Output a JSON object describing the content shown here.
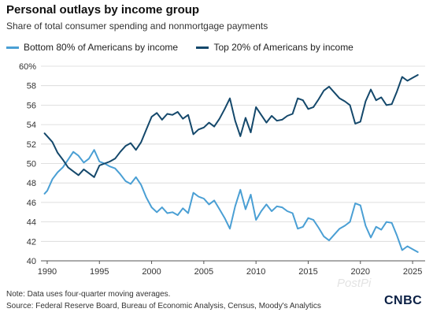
{
  "title": "Personal outlays by income group",
  "subtitle": "Share of total consumer spending and nonmortgage payments",
  "note": "Note: Data uses four-quarter moving averages.",
  "source": "Source: Federal Reserve Board, Bureau of Economic Analysis, Census, Moody's Analytics",
  "watermark": "PostPi",
  "logo": "CNBC",
  "colors": {
    "bottom80": "#4a9fd4",
    "top20": "#14486b",
    "grid": "#d6d6d6"
  },
  "chart_data": {
    "type": "line",
    "title": "Personal outlays by income group",
    "subtitle": "Share of total consumer spending and nonmortgage payments",
    "xlabel": "",
    "ylabel": "",
    "xlim": [
      1989.4,
      2026.2
    ],
    "ylim": [
      40,
      60
    ],
    "x_ticks": [
      1990,
      1995,
      2000,
      2005,
      2010,
      2015,
      2020,
      2025
    ],
    "x_tick_labels": [
      "1990",
      "1995",
      "2000",
      "2005",
      "2010",
      "2015",
      "2020",
      "2025"
    ],
    "y_ticks": [
      40,
      42,
      44,
      46,
      48,
      50,
      52,
      54,
      56,
      58,
      60
    ],
    "y_tick_labels": [
      "40",
      "42",
      "44",
      "46",
      "48",
      "50",
      "52",
      "54",
      "56",
      "58",
      "60%"
    ],
    "grid": "horizontal",
    "legend": "top-left",
    "series": [
      {
        "name": "Bottom 80% of Americans by income",
        "color": "#4a9fd4",
        "x": [
          1989.75,
          1990.0,
          1990.5,
          1991.0,
          1991.5,
          1992.0,
          1992.5,
          1993.0,
          1993.5,
          1994.0,
          1994.5,
          1995.0,
          1995.5,
          1996.0,
          1996.5,
          1997.0,
          1997.5,
          1998.0,
          1998.5,
          1999.0,
          1999.5,
          2000.0,
          2000.5,
          2001.0,
          2001.5,
          2002.0,
          2002.5,
          2003.0,
          2003.5,
          2004.0,
          2004.5,
          2005.0,
          2005.5,
          2006.0,
          2006.5,
          2007.0,
          2007.5,
          2008.0,
          2008.5,
          2009.0,
          2009.5,
          2010.0,
          2010.5,
          2011.0,
          2011.5,
          2012.0,
          2012.5,
          2013.0,
          2013.5,
          2014.0,
          2014.5,
          2015.0,
          2015.5,
          2016.0,
          2016.5,
          2017.0,
          2017.5,
          2018.0,
          2018.5,
          2019.0,
          2019.5,
          2020.0,
          2020.5,
          2021.0,
          2021.5,
          2022.0,
          2022.5,
          2023.0,
          2023.5,
          2024.0,
          2024.5,
          2025.0,
          2025.5
        ],
        "values": [
          46.9,
          47.2,
          48.4,
          49.1,
          49.6,
          50.4,
          51.2,
          50.8,
          50.1,
          50.5,
          51.4,
          50.2,
          50.0,
          49.7,
          49.5,
          48.9,
          48.2,
          47.9,
          48.6,
          47.8,
          46.5,
          45.5,
          45.0,
          45.5,
          44.9,
          45.0,
          44.7,
          45.4,
          44.9,
          47.0,
          46.6,
          46.4,
          45.8,
          46.2,
          45.3,
          44.4,
          43.3,
          45.6,
          47.3,
          45.3,
          46.8,
          44.2,
          45.1,
          45.8,
          45.1,
          45.6,
          45.5,
          45.1,
          44.9,
          43.3,
          43.5,
          44.4,
          44.2,
          43.4,
          42.5,
          42.1,
          42.7,
          43.3,
          43.6,
          44.0,
          45.9,
          45.7,
          43.6,
          42.4,
          43.5,
          43.2,
          44.0,
          43.9,
          42.6,
          41.1,
          41.5,
          41.2,
          40.9
        ]
      },
      {
        "name": "Top 20% of Americans by income",
        "color": "#14486b",
        "x": [
          1989.75,
          1990.0,
          1990.5,
          1991.0,
          1991.5,
          1992.0,
          1992.5,
          1993.0,
          1993.5,
          1994.0,
          1994.5,
          1995.0,
          1995.5,
          1996.0,
          1996.5,
          1997.0,
          1997.5,
          1998.0,
          1998.5,
          1999.0,
          1999.5,
          2000.0,
          2000.5,
          2001.0,
          2001.5,
          2002.0,
          2002.5,
          2003.0,
          2003.5,
          2004.0,
          2004.5,
          2005.0,
          2005.5,
          2006.0,
          2006.5,
          2007.0,
          2007.5,
          2008.0,
          2008.5,
          2009.0,
          2009.5,
          2010.0,
          2010.5,
          2011.0,
          2011.5,
          2012.0,
          2012.5,
          2013.0,
          2013.5,
          2014.0,
          2014.5,
          2015.0,
          2015.5,
          2016.0,
          2016.5,
          2017.0,
          2017.5,
          2018.0,
          2018.5,
          2019.0,
          2019.5,
          2020.0,
          2020.5,
          2021.0,
          2021.5,
          2022.0,
          2022.5,
          2023.0,
          2023.5,
          2024.0,
          2024.5,
          2025.0,
          2025.5
        ],
        "values": [
          53.1,
          52.8,
          52.2,
          51.1,
          50.4,
          49.6,
          49.2,
          48.8,
          49.4,
          49.0,
          48.6,
          49.8,
          50.0,
          50.2,
          50.5,
          51.2,
          51.8,
          52.1,
          51.4,
          52.2,
          53.5,
          54.8,
          55.2,
          54.5,
          55.1,
          55.0,
          55.3,
          54.6,
          55.0,
          53.0,
          53.5,
          53.7,
          54.2,
          53.8,
          54.6,
          55.6,
          56.7,
          54.4,
          52.8,
          54.7,
          53.2,
          55.8,
          55.0,
          54.2,
          54.9,
          54.4,
          54.5,
          54.9,
          55.1,
          56.7,
          56.5,
          55.6,
          55.8,
          56.6,
          57.5,
          57.9,
          57.3,
          56.7,
          56.4,
          56.0,
          54.1,
          54.3,
          56.4,
          57.6,
          56.5,
          56.8,
          56.0,
          56.1,
          57.4,
          58.9,
          58.5,
          58.8,
          59.1
        ]
      }
    ]
  }
}
